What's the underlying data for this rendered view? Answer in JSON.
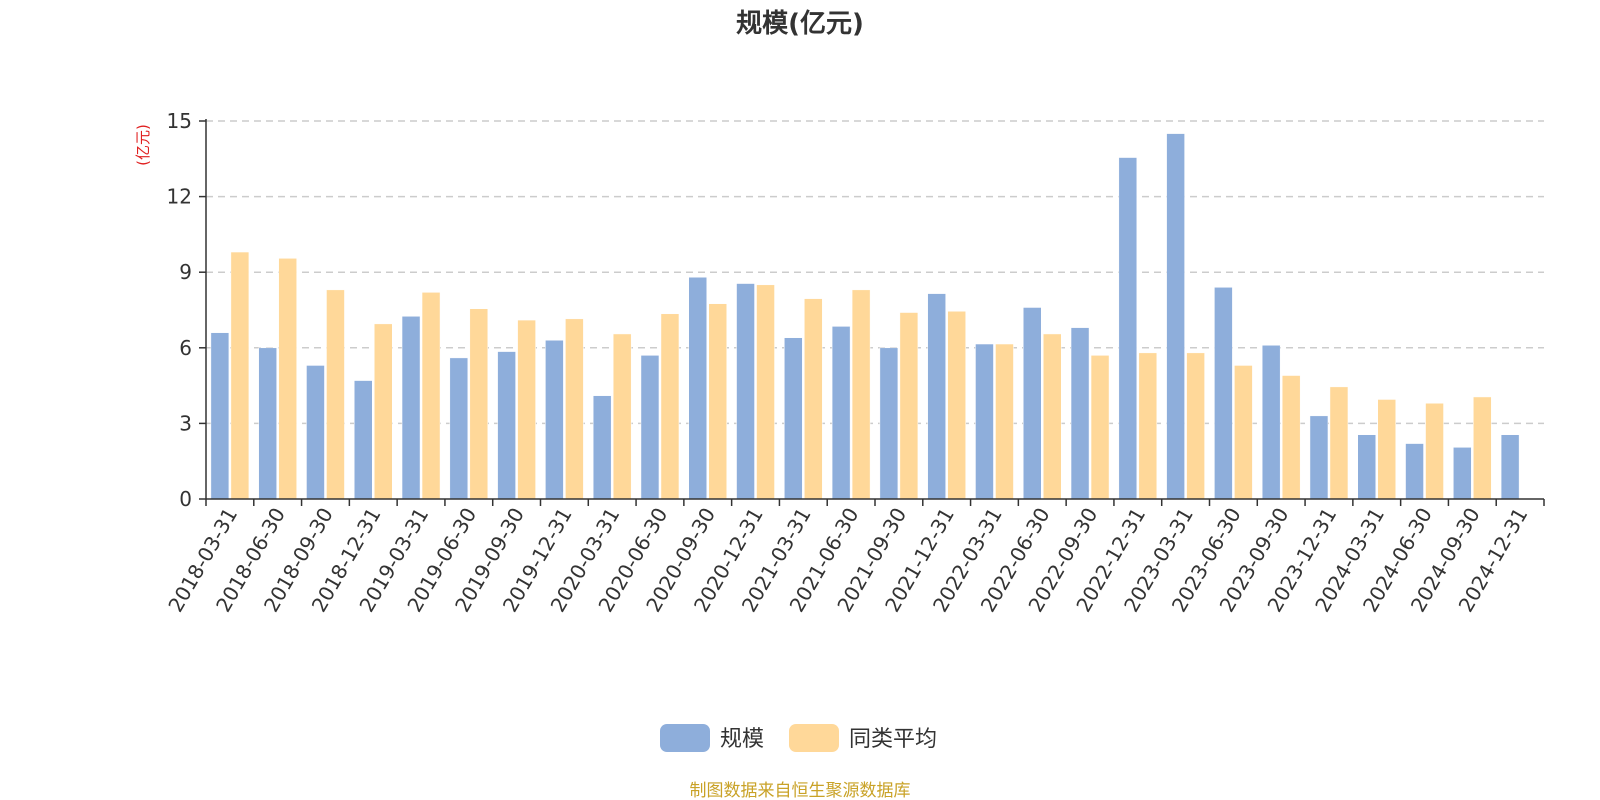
{
  "chart_data": {
    "type": "bar",
    "title": "规模(亿元)",
    "ylabel": "(亿元)",
    "xlabel": "",
    "ylim": [
      0,
      15
    ],
    "yticks": [
      0,
      3,
      6,
      9,
      12,
      15
    ],
    "grid": true,
    "legend_position": "bottom-center",
    "categories": [
      "2018-03-31",
      "2018-06-30",
      "2018-09-30",
      "2018-12-31",
      "2019-03-31",
      "2019-06-30",
      "2019-09-30",
      "2019-12-31",
      "2020-03-31",
      "2020-06-30",
      "2020-09-30",
      "2020-12-31",
      "2021-03-31",
      "2021-06-30",
      "2021-09-30",
      "2021-12-31",
      "2022-03-31",
      "2022-06-30",
      "2022-09-30",
      "2022-12-31",
      "2023-03-31",
      "2023-06-30",
      "2023-09-30",
      "2023-12-31",
      "2024-03-31",
      "2024-06-30",
      "2024-09-30",
      "2024-12-31"
    ],
    "series": [
      {
        "name": "规模",
        "color": "#8eaedb",
        "values": [
          6.6,
          6.0,
          5.3,
          4.7,
          7.25,
          5.6,
          5.85,
          6.3,
          4.1,
          5.7,
          8.8,
          8.55,
          6.4,
          6.85,
          6.0,
          8.15,
          6.15,
          7.6,
          6.8,
          13.55,
          14.5,
          8.4,
          6.1,
          3.3,
          2.55,
          2.2,
          2.05,
          2.55
        ]
      },
      {
        "name": "同类平均",
        "color": "#ffd899",
        "values": [
          9.8,
          9.55,
          8.3,
          6.95,
          8.2,
          7.55,
          7.1,
          7.15,
          6.55,
          7.35,
          7.75,
          8.5,
          7.95,
          8.3,
          7.4,
          7.45,
          6.15,
          6.55,
          5.7,
          5.8,
          5.8,
          5.3,
          4.9,
          4.45,
          3.95,
          3.8,
          4.05,
          null
        ]
      }
    ]
  },
  "colors": {
    "title": "#333333",
    "unit": "#e02020",
    "grid": "#cccccc",
    "axis": "#333333",
    "source": "#c9a227"
  },
  "source_text": "制图数据来自恒生聚源数据库"
}
